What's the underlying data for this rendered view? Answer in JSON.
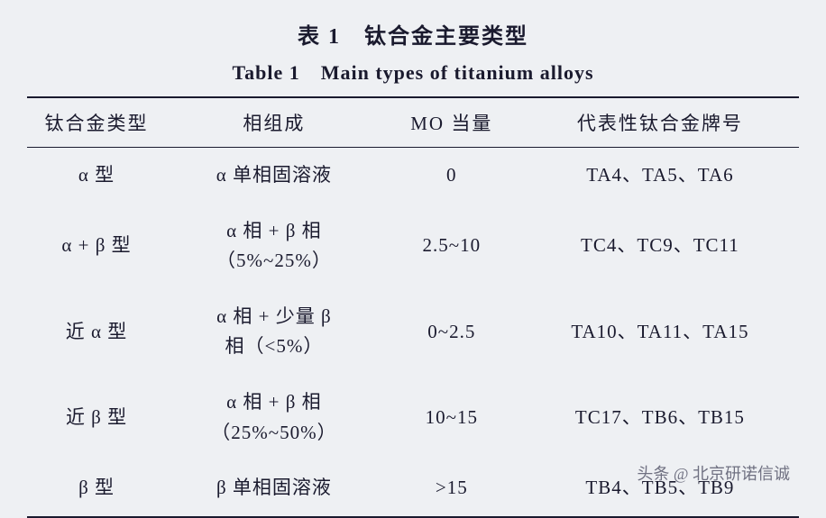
{
  "title": {
    "cn": "表 1　钛合金主要类型",
    "en": "Table 1　Main types of titanium alloys"
  },
  "table": {
    "columns": [
      {
        "key": "type",
        "label": "钛合金类型",
        "width": "18%"
      },
      {
        "key": "phase",
        "label": "相组成",
        "width": "28%"
      },
      {
        "key": "mo",
        "label": "MO 当量",
        "width": "18%"
      },
      {
        "key": "grade",
        "label": "代表性钛合金牌号",
        "width": "36%"
      }
    ],
    "rows": [
      {
        "type": "α 型",
        "phase": "α 单相固溶液",
        "mo": "0",
        "grade": "TA4、TA5、TA6"
      },
      {
        "type": "α + β 型",
        "phase": "α 相 + β 相\n（5%~25%）",
        "mo": "2.5~10",
        "grade": "TC4、TC9、TC11"
      },
      {
        "type": "近 α 型",
        "phase": "α 相 + 少量 β\n相（<5%）",
        "mo": "0~2.5",
        "grade": "TA10、TA11、TA15"
      },
      {
        "type": "近 β 型",
        "phase": "α 相 + β 相\n（25%~50%）",
        "mo": "10~15",
        "grade": "TC17、TB6、TB15"
      },
      {
        "type": "β 型",
        "phase": "β 单相固溶液",
        "mo": ">15",
        "grade": "TB4、TB5、TB9"
      }
    ]
  },
  "watermark": "头条 @ 北京研诺信诚",
  "style": {
    "background_color": "#eef0f3",
    "text_color": "#1a1a2e",
    "rule_color": "#1a1a2e",
    "title_fontsize_pt": 18,
    "body_fontsize_pt": 16,
    "font_family": "Times New Roman / SimSun serif",
    "table_type": "three-line-table"
  }
}
